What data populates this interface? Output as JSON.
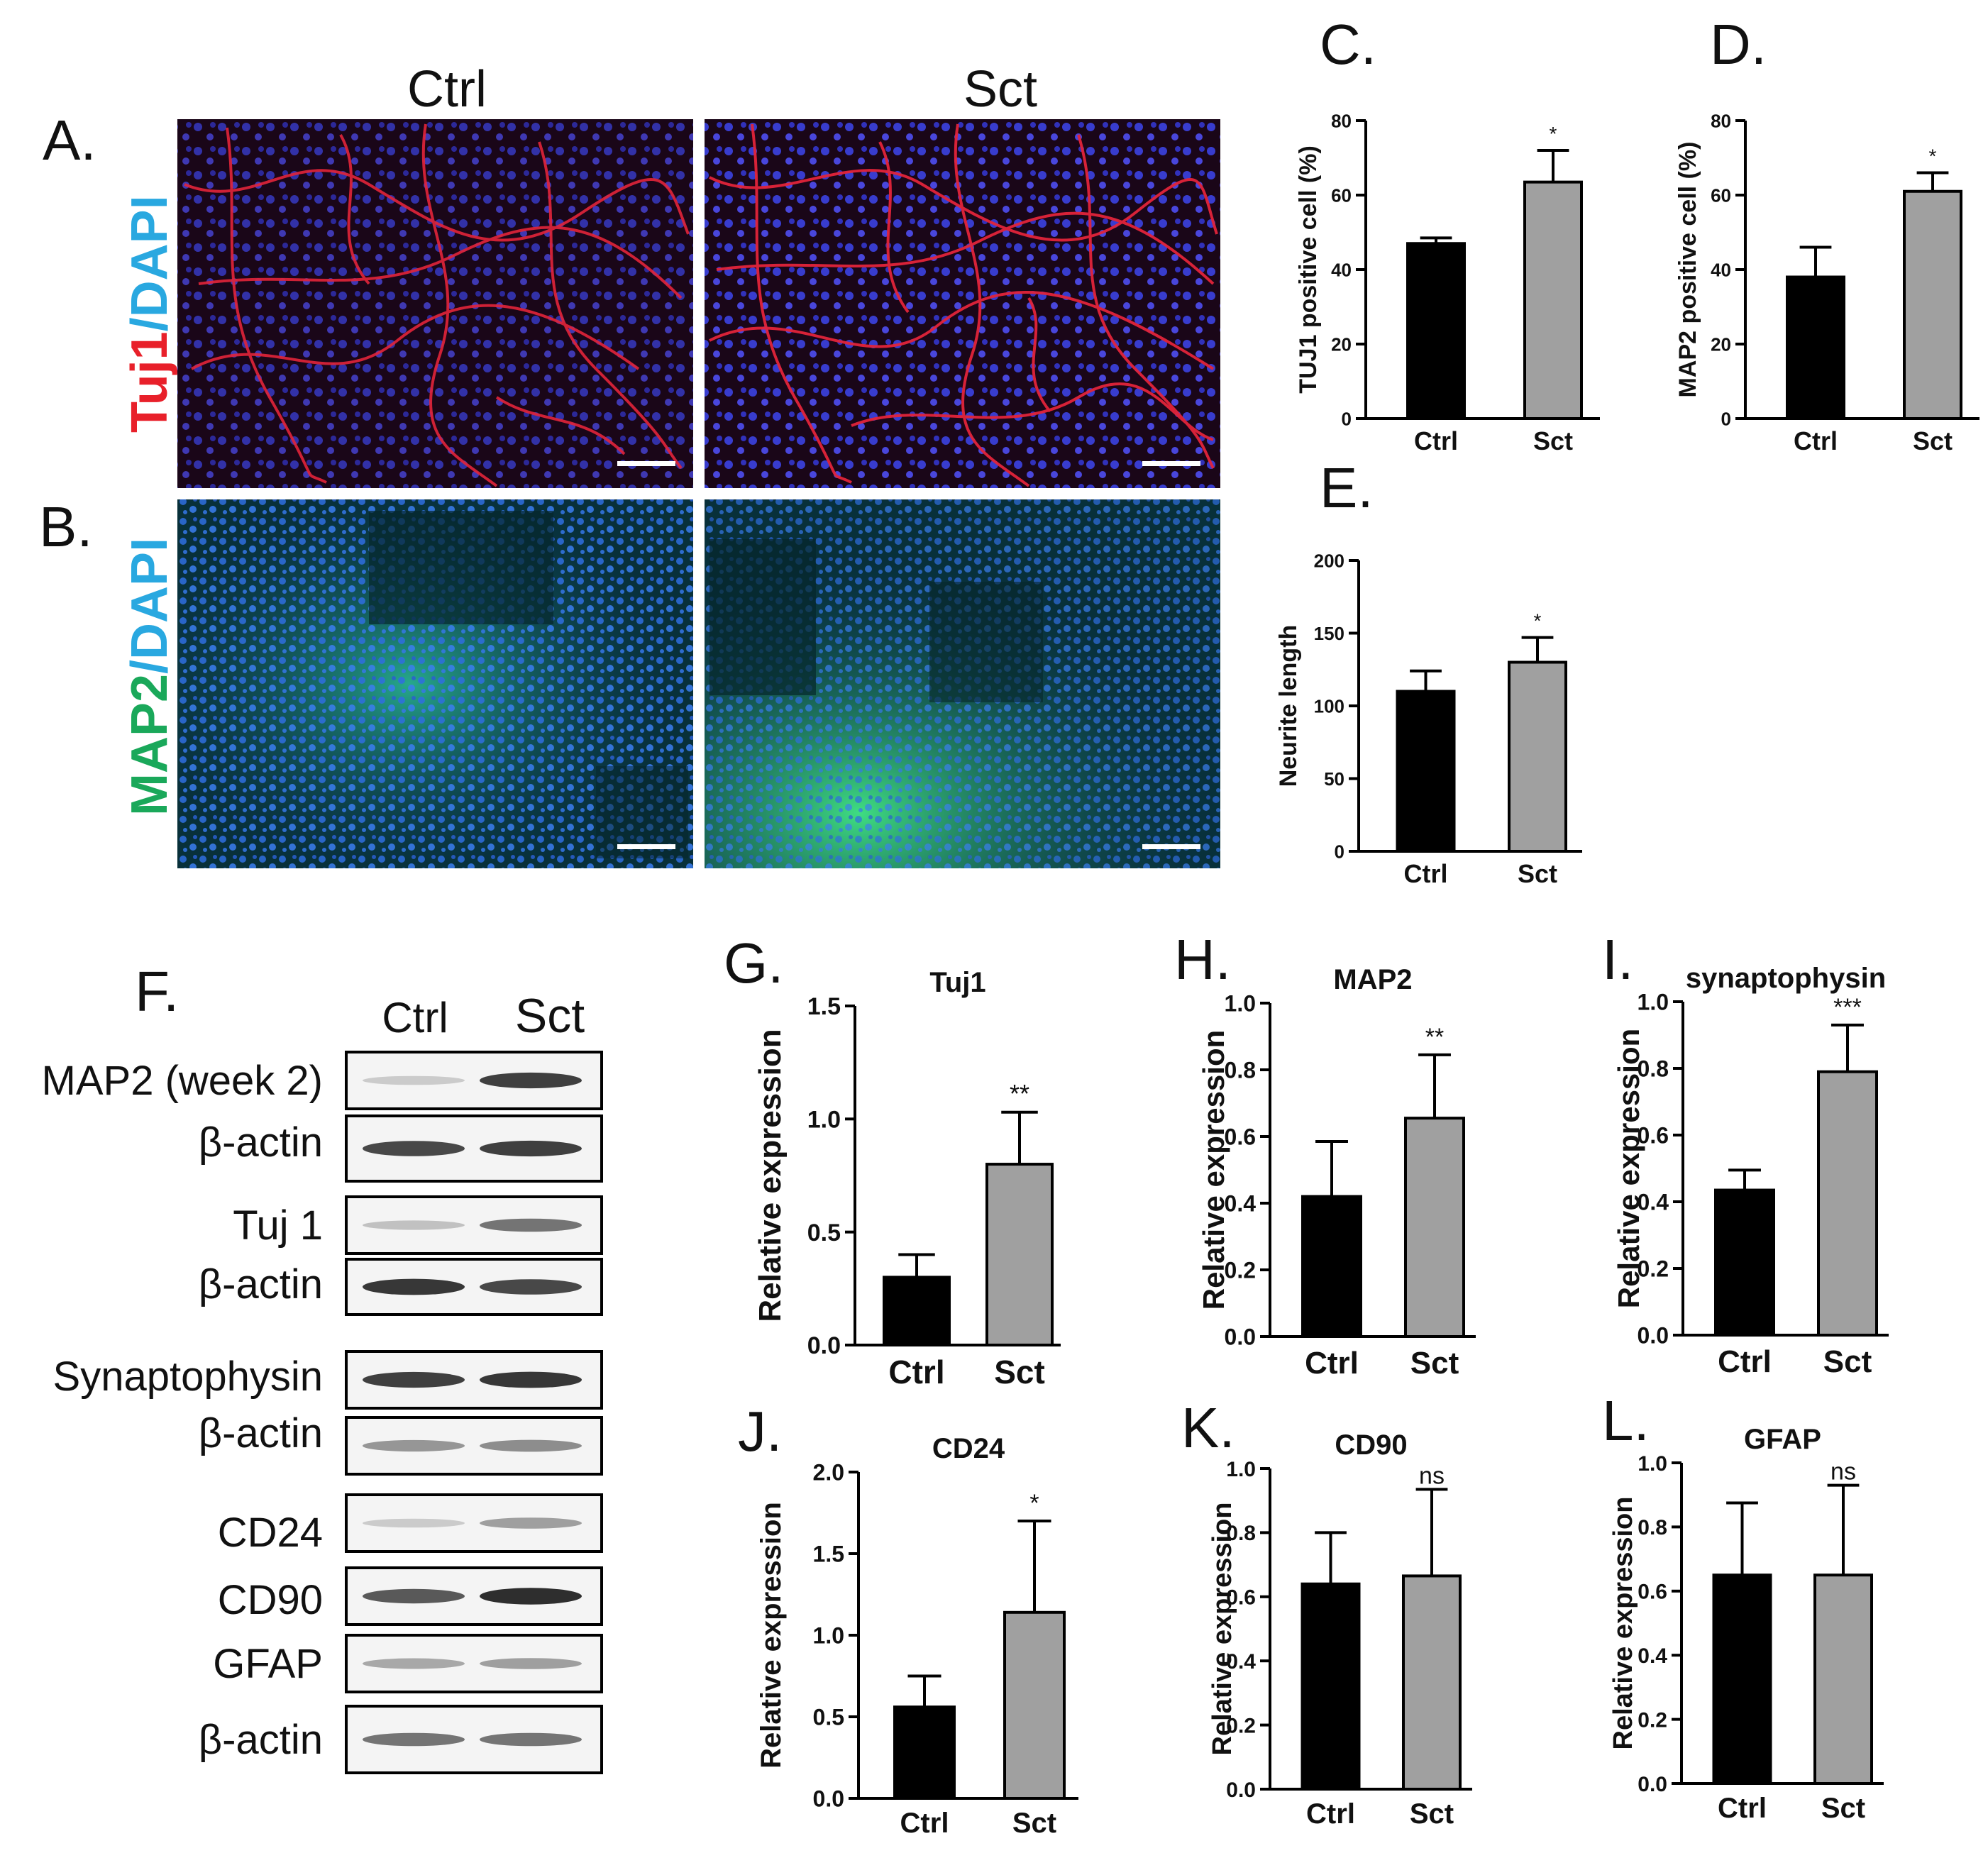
{
  "panel_letters": {
    "A": "A.",
    "B": "B.",
    "C": "C.",
    "D": "D.",
    "E": "E.",
    "F": "F.",
    "G": "G.",
    "H": "H.",
    "I": "I.",
    "J": "J.",
    "K": "K.",
    "L": "L."
  },
  "micrograph": {
    "col_ctrl": "Ctrl",
    "col_sct": "Sct",
    "row_a_marker": "Tuj1",
    "row_a_sep": "/",
    "row_a_counter": "DAPI",
    "row_b_marker": "MAP2",
    "row_b_sep": "/",
    "row_b_counter": "DAPI",
    "colors": {
      "tuj1": "#e8202a",
      "dapi": "#29a8e0",
      "map2": "#1aa85a"
    }
  },
  "western_blot": {
    "col_ctrl": "Ctrl",
    "col_sct": "Sct",
    "rows": [
      "MAP2 (week 2)",
      "β-actin",
      "Tuj 1",
      "β-actin",
      "Synaptophysin",
      "β-actin",
      "CD24",
      "CD90",
      "GFAP",
      "β-actin"
    ]
  },
  "chart_data": [
    {
      "id": "C",
      "type": "bar",
      "title": "",
      "ylabel": "TUJ1 positive cell (%)",
      "xlabel": "",
      "categories": [
        "Ctrl",
        "Sct"
      ],
      "values": [
        47,
        63.5
      ],
      "errors": [
        1.5,
        8.5
      ],
      "ylim": [
        0,
        80
      ],
      "yticks": [
        "0",
        "20",
        "40",
        "60",
        "80"
      ],
      "significance": [
        "",
        "*"
      ],
      "colors": [
        "#000000",
        "#a0a0a0"
      ]
    },
    {
      "id": "D",
      "type": "bar",
      "title": "",
      "ylabel": "MAP2 positive cell (%)",
      "xlabel": "",
      "categories": [
        "Ctrl",
        "Sct"
      ],
      "values": [
        38,
        61
      ],
      "errors": [
        8,
        5
      ],
      "ylim": [
        0,
        80
      ],
      "yticks": [
        "0",
        "20",
        "40",
        "60",
        "80"
      ],
      "significance": [
        "",
        "*"
      ],
      "colors": [
        "#000000",
        "#a0a0a0"
      ]
    },
    {
      "id": "E",
      "type": "bar",
      "title": "",
      "ylabel": "Neurite length",
      "xlabel": "",
      "categories": [
        "Ctrl",
        "Sct"
      ],
      "values": [
        110,
        130
      ],
      "errors": [
        14,
        17
      ],
      "ylim": [
        0,
        200
      ],
      "yticks": [
        "0",
        "50",
        "100",
        "150",
        "200"
      ],
      "significance": [
        "",
        "*"
      ],
      "colors": [
        "#000000",
        "#a0a0a0"
      ]
    },
    {
      "id": "G",
      "type": "bar",
      "title": "Tuj1",
      "ylabel": "Relative expression",
      "xlabel": "",
      "categories": [
        "Ctrl",
        "Sct"
      ],
      "values": [
        0.3,
        0.8
      ],
      "errors": [
        0.1,
        0.23
      ],
      "ylim": [
        0,
        1.5
      ],
      "yticks": [
        "0.0",
        "0.5",
        "1.0",
        "1.5"
      ],
      "significance": [
        "",
        "**"
      ],
      "colors": [
        "#000000",
        "#a0a0a0"
      ]
    },
    {
      "id": "H",
      "type": "bar",
      "title": "MAP2",
      "ylabel": "Relative expression",
      "xlabel": "",
      "categories": [
        "Ctrl",
        "Sct"
      ],
      "values": [
        0.42,
        0.655
      ],
      "errors": [
        0.165,
        0.19
      ],
      "ylim": [
        0,
        1.0
      ],
      "yticks": [
        "0.0",
        "0.2",
        "0.4",
        "0.6",
        "0.8",
        "1.0"
      ],
      "significance": [
        "",
        "**"
      ],
      "colors": [
        "#000000",
        "#a0a0a0"
      ]
    },
    {
      "id": "I",
      "type": "bar",
      "title": "synaptophysin",
      "ylabel": "Relative expression",
      "xlabel": "",
      "categories": [
        "Ctrl",
        "Sct"
      ],
      "values": [
        0.435,
        0.79
      ],
      "errors": [
        0.06,
        0.14
      ],
      "ylim": [
        0,
        1.0
      ],
      "yticks": [
        "0.0",
        "0.2",
        "0.4",
        "0.6",
        "0.8",
        "1.0"
      ],
      "significance": [
        "",
        "***"
      ],
      "colors": [
        "#000000",
        "#a0a0a0"
      ]
    },
    {
      "id": "J",
      "type": "bar",
      "title": "CD24",
      "ylabel": "Relative expression",
      "xlabel": "",
      "categories": [
        "Ctrl",
        "Sct"
      ],
      "values": [
        0.56,
        1.14
      ],
      "errors": [
        0.19,
        0.56
      ],
      "ylim": [
        0,
        2.0
      ],
      "yticks": [
        "0.0",
        "0.5",
        "1.0",
        "1.5",
        "2.0"
      ],
      "significance": [
        "",
        "*"
      ],
      "colors": [
        "#000000",
        "#a0a0a0"
      ]
    },
    {
      "id": "K",
      "type": "bar",
      "title": "CD90",
      "ylabel": "Relative expression",
      "xlabel": "",
      "categories": [
        "Ctrl",
        "Sct"
      ],
      "values": [
        0.64,
        0.665
      ],
      "errors": [
        0.16,
        0.27
      ],
      "ylim": [
        0,
        1.0
      ],
      "yticks": [
        "0.0",
        "0.2",
        "0.4",
        "0.6",
        "0.8",
        "1.0"
      ],
      "significance": [
        "",
        "ns"
      ],
      "colors": [
        "#000000",
        "#a0a0a0"
      ]
    },
    {
      "id": "L",
      "type": "bar",
      "title": "GFAP",
      "ylabel": "Relative expression",
      "xlabel": "",
      "categories": [
        "Ctrl",
        "Sct"
      ],
      "values": [
        0.65,
        0.65
      ],
      "errors": [
        0.225,
        0.28
      ],
      "ylim": [
        0,
        1.0
      ],
      "yticks": [
        "0.0",
        "0.2",
        "0.4",
        "0.6",
        "0.8",
        "1.0"
      ],
      "significance": [
        "",
        "ns"
      ],
      "colors": [
        "#000000",
        "#a0a0a0"
      ]
    }
  ]
}
